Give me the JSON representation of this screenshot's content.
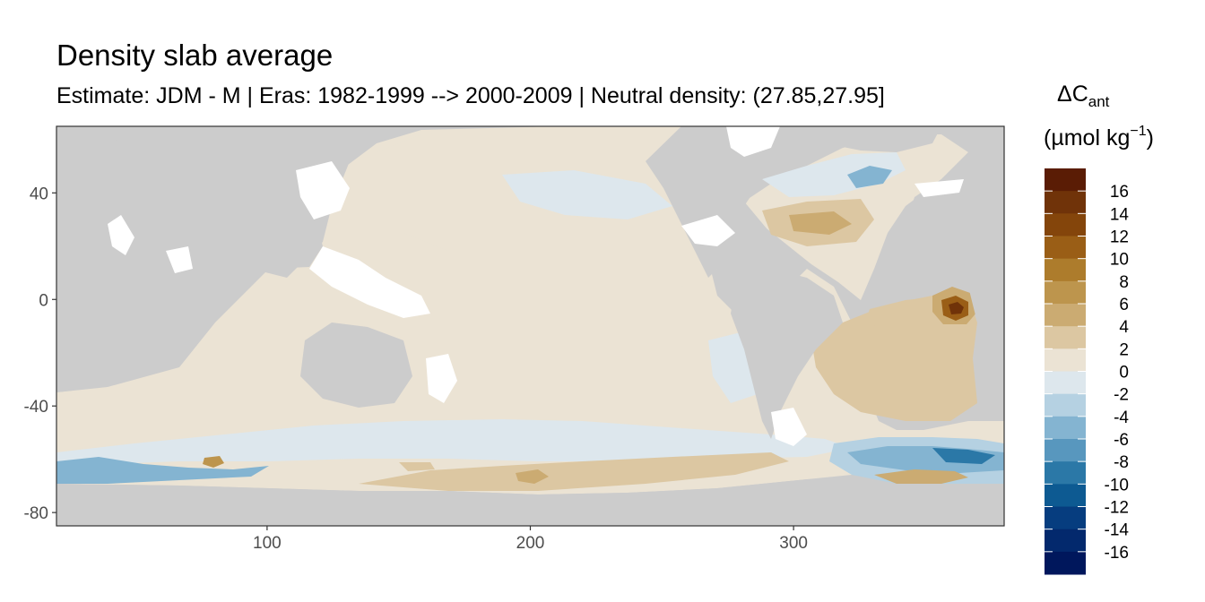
{
  "chart_data": {
    "type": "heatmap",
    "title": "Density slab average",
    "subtitle": "Estimate: JDM - M | Eras: 1982-1999 --> 2000-2009 | Neutral density: (27.85,27.95]",
    "xlabel": "",
    "ylabel": "",
    "xlim": [
      20,
      380
    ],
    "ylim": [
      -85,
      65
    ],
    "x_ticks": [
      100,
      200,
      300
    ],
    "y_ticks": [
      40,
      0,
      -40,
      -80
    ],
    "grid": false,
    "colors": {
      "panel_background": "#cccccc",
      "missing_data": "#ffffff"
    },
    "legend": {
      "title_main": "ΔC",
      "title_sub": "ant",
      "unit_open": "(µmol kg",
      "unit_sup": "−1",
      "unit_close": ")",
      "placement": "right",
      "labels": [
        "16",
        "14",
        "12",
        "10",
        "8",
        "6",
        "4",
        "2",
        "0",
        "-2",
        "-4",
        "-6",
        "-8",
        "-10",
        "-12",
        "-14",
        "-16"
      ],
      "bins": [
        {
          "from": 16,
          "to": 18,
          "color": "#5a1c05"
        },
        {
          "from": 14,
          "to": 16,
          "color": "#703309"
        },
        {
          "from": 12,
          "to": 14,
          "color": "#84450b"
        },
        {
          "from": 10,
          "to": 12,
          "color": "#9a5e16"
        },
        {
          "from": 8,
          "to": 10,
          "color": "#ad7c2c"
        },
        {
          "from": 6,
          "to": 8,
          "color": "#bd954d"
        },
        {
          "from": 4,
          "to": 6,
          "color": "#cbab72"
        },
        {
          "from": 2,
          "to": 4,
          "color": "#dcc7a2"
        },
        {
          "from": 0,
          "to": 2,
          "color": "#ebe3d4"
        },
        {
          "from": -2,
          "to": 0,
          "color": "#dde7ed"
        },
        {
          "from": -4,
          "to": -2,
          "color": "#b5d1e2"
        },
        {
          "from": -6,
          "to": -4,
          "color": "#84b4d1"
        },
        {
          "from": -8,
          "to": -6,
          "color": "#5897be"
        },
        {
          "from": -10,
          "to": -8,
          "color": "#2b78a7"
        },
        {
          "from": -12,
          "to": -10,
          "color": "#0d5a92"
        },
        {
          "from": -14,
          "to": -12,
          "color": "#063d7f"
        },
        {
          "from": -16,
          "to": -14,
          "color": "#03296d"
        },
        {
          "from": -18,
          "to": -16,
          "color": "#00175c"
        }
      ]
    }
  }
}
